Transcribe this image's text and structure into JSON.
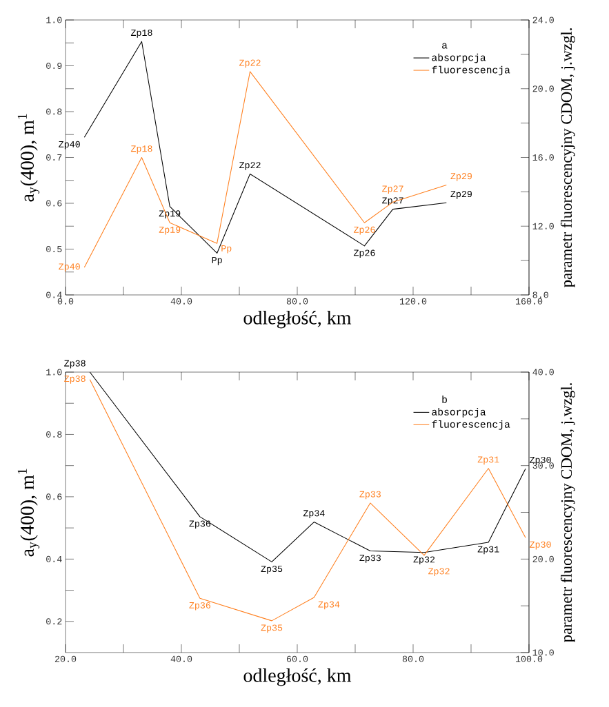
{
  "chart_data": [
    {
      "type": "line",
      "legend_title": "a",
      "xlabel": "odległość, km",
      "ylabel": "a$_{y}$(400), m$^{1}$",
      "y2label": "parametr fluorescencyjny CDOM, j.wzgl.",
      "legend": "top right",
      "marker": "none",
      "line_style": "solid",
      "xlim": [
        0,
        160
      ],
      "ylim": [
        0.4,
        1.0
      ],
      "y2lim": [
        8,
        24
      ],
      "xticks": [
        {
          "value": 0,
          "label": "0.0"
        },
        {
          "value": 20,
          "label": null
        },
        {
          "value": 40,
          "label": "40.0"
        },
        {
          "value": 60,
          "label": null
        },
        {
          "value": 80,
          "label": "80.0"
        },
        {
          "value": 100,
          "label": null
        },
        {
          "value": 120,
          "label": "120.0"
        },
        {
          "value": 140,
          "label": null
        },
        {
          "value": 160,
          "label": "160.0"
        }
      ],
      "yticks": [
        {
          "value": 0.4,
          "label": "0.4"
        },
        {
          "value": 0.45,
          "label": null
        },
        {
          "value": 0.5,
          "label": "0.5"
        },
        {
          "value": 0.55,
          "label": null
        },
        {
          "value": 0.6,
          "label": "0.6"
        },
        {
          "value": 0.65,
          "label": null
        },
        {
          "value": 0.7,
          "label": "0.7"
        },
        {
          "value": 0.75,
          "label": null
        },
        {
          "value": 0.8,
          "label": "0.8"
        },
        {
          "value": 0.85,
          "label": null
        },
        {
          "value": 0.9,
          "label": "0.9"
        },
        {
          "value": 0.95,
          "label": null
        },
        {
          "value": 1.0,
          "label": "1.0"
        }
      ],
      "y2ticks": [
        {
          "value": 8,
          "label": "8.0"
        },
        {
          "value": 10,
          "label": null
        },
        {
          "value": 12,
          "label": "12.0"
        },
        {
          "value": 14,
          "label": null
        },
        {
          "value": 16,
          "label": "16.0"
        },
        {
          "value": 18,
          "label": null
        },
        {
          "value": 20,
          "label": "20.0"
        },
        {
          "value": 22,
          "label": null
        },
        {
          "value": 24,
          "label": "24.0"
        }
      ],
      "x": [
        6.5,
        26.3,
        36.0,
        52.3,
        63.7,
        103.2,
        113.0,
        131.5
      ],
      "series": [
        {
          "name": "absorpcja",
          "color": "#000000",
          "axis": "y",
          "values": [
            0.744,
            0.953,
            0.593,
            0.491,
            0.664,
            0.507,
            0.587,
            0.601
          ],
          "value_labels": [
            "Zp40",
            "Zp18",
            "Zp19",
            "Pp",
            "Zp22",
            "Zp26",
            "Zp27",
            "Zp29"
          ]
        },
        {
          "name": "fluorescencja",
          "color": "#ff8020",
          "axis": "y2",
          "values": [
            9.6,
            16.0,
            12.2,
            11.0,
            21.0,
            12.2,
            13.4,
            14.4
          ],
          "value_labels": [
            "Zp40",
            "Zp18",
            "Zp19",
            "Pp",
            "Zp22",
            "Zp26",
            "Zp27",
            "Zp29"
          ]
        }
      ]
    },
    {
      "type": "line",
      "legend_title": "b",
      "xlabel": "odległość, km",
      "ylabel": "a$_{y}$(400), m$^{1}$",
      "y2label": "parametr fluorescencyjny CDOM, j.wzgl.",
      "legend": "top right",
      "marker": "none",
      "line_style": "solid",
      "xlim": [
        20,
        100
      ],
      "ylim": [
        0.1,
        1.0
      ],
      "y2lim": [
        10,
        40
      ],
      "xticks": [
        {
          "value": 20,
          "label": "20.0"
        },
        {
          "value": 30,
          "label": null
        },
        {
          "value": 40,
          "label": "40.0"
        },
        {
          "value": 50,
          "label": null
        },
        {
          "value": 60,
          "label": "60.0"
        },
        {
          "value": 70,
          "label": null
        },
        {
          "value": 80,
          "label": "80.0"
        },
        {
          "value": 90,
          "label": null
        },
        {
          "value": 100,
          "label": "100.0"
        }
      ],
      "yticks": [
        {
          "value": 0.2,
          "label": "0.2"
        },
        {
          "value": 0.3,
          "label": null
        },
        {
          "value": 0.4,
          "label": "0.4"
        },
        {
          "value": 0.5,
          "label": null
        },
        {
          "value": 0.6,
          "label": "0.6"
        },
        {
          "value": 0.7,
          "label": null
        },
        {
          "value": 0.8,
          "label": "0.8"
        },
        {
          "value": 0.9,
          "label": null
        },
        {
          "value": 1.0,
          "label": "1.0"
        }
      ],
      "y2ticks": [
        {
          "value": 10,
          "label": "10.0"
        },
        {
          "value": 15,
          "label": null
        },
        {
          "value": 20,
          "label": "20.0"
        },
        {
          "value": 25,
          "label": null
        },
        {
          "value": 30,
          "label": "30.0"
        },
        {
          "value": 35,
          "label": null
        },
        {
          "value": 40,
          "label": "40.0"
        }
      ],
      "x": [
        24.2,
        43.2,
        55.6,
        62.9,
        72.6,
        81.9,
        93.0,
        99.4
      ],
      "series": [
        {
          "name": "absorpcja",
          "color": "#000000",
          "axis": "y",
          "values": [
            1.0,
            0.536,
            0.391,
            0.519,
            0.426,
            0.421,
            0.454,
            0.69
          ],
          "value_labels": [
            "Zp38",
            "Zp36",
            "Zp35",
            "Zp34",
            "Zp33",
            "Zp32",
            "Zp31",
            "Zp30"
          ]
        },
        {
          "name": "fluorescencja",
          "color": "#ff8020",
          "axis": "y2",
          "values": [
            39.2,
            15.8,
            13.4,
            15.9,
            26.0,
            20.4,
            29.7,
            22.3
          ],
          "value_labels": [
            "Zp38",
            "Zp36",
            "Zp35",
            "Zp34",
            "Zp33",
            "Zp32",
            "Zp31",
            "Zp30"
          ]
        }
      ]
    }
  ]
}
